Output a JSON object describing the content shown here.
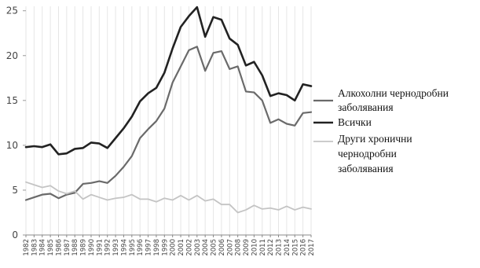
{
  "chart_data": {
    "type": "line",
    "title": "",
    "xlabel": "",
    "ylabel": "",
    "x": [
      "1982",
      "1983",
      "1984",
      "1985",
      "1986",
      "1987",
      "1988",
      "1989",
      "1990",
      "1991",
      "1992",
      "1993",
      "1994",
      "1995",
      "1996",
      "1997",
      "1998",
      "1999",
      "2000",
      "2001",
      "2002",
      "2003",
      "2004",
      "2005",
      "2006",
      "2007",
      "2008",
      "2009",
      "2010",
      "2011",
      "2012",
      "2013",
      "2014",
      "2015",
      "2016",
      "2017"
    ],
    "ylim": [
      0,
      25.5
    ],
    "yticks": [
      0,
      5,
      10,
      15,
      20,
      25
    ],
    "grid": "vertical",
    "legend_position": "right",
    "series": [
      {
        "name": "Алкохолни чернодробни заболявания",
        "color": "#6a6a6a",
        "values": [
          3.9,
          4.2,
          4.5,
          4.6,
          4.1,
          4.5,
          4.7,
          5.7,
          5.8,
          6.0,
          5.8,
          6.6,
          7.6,
          8.8,
          10.8,
          11.8,
          12.7,
          14.1,
          17.0,
          18.8,
          20.6,
          21.0,
          18.3,
          20.3,
          20.5,
          18.5,
          18.8,
          16.0,
          15.9,
          15.0,
          12.5,
          12.9,
          12.4,
          12.2,
          13.6,
          13.7
        ]
      },
      {
        "name": "Всички",
        "color": "#222222",
        "values": [
          9.8,
          9.9,
          9.8,
          10.1,
          9.0,
          9.1,
          9.6,
          9.7,
          10.3,
          10.2,
          9.7,
          10.8,
          11.9,
          13.2,
          14.9,
          15.8,
          16.4,
          18.1,
          20.8,
          23.2,
          24.4,
          25.4,
          22.1,
          24.3,
          24.0,
          21.9,
          21.2,
          18.9,
          19.3,
          17.8,
          15.5,
          15.8,
          15.6,
          15.0,
          16.8,
          16.6
        ]
      },
      {
        "name": "Други хронични чернодробни заболявания",
        "color": "#c4c4c4",
        "values": [
          5.9,
          5.6,
          5.3,
          5.5,
          4.9,
          4.6,
          4.9,
          4.0,
          4.5,
          4.2,
          3.9,
          4.1,
          4.2,
          4.5,
          4.0,
          4.0,
          3.7,
          4.1,
          3.9,
          4.4,
          3.9,
          4.4,
          3.8,
          4.0,
          3.4,
          3.4,
          2.5,
          2.8,
          3.3,
          2.9,
          3.0,
          2.8,
          3.2,
          2.8,
          3.1,
          2.9
        ]
      }
    ]
  },
  "legend": {
    "lines": [
      {
        "series": 0,
        "text_lines": [
          "Алкохолни чернодробни",
          "заболявания"
        ]
      },
      {
        "series": 1,
        "text_lines": [
          "Всички"
        ]
      },
      {
        "series": 2,
        "text_lines": [
          "Други хронични",
          "чернодробни",
          "заболявания"
        ]
      }
    ]
  }
}
